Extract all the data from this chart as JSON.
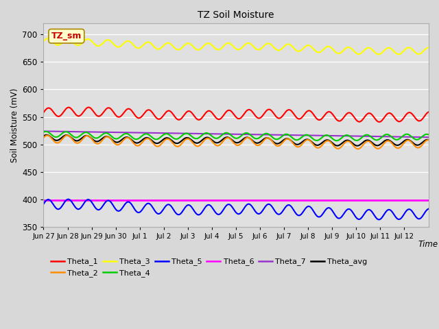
{
  "title": "TZ Soil Moisture",
  "xlabel": "Time",
  "ylabel": "Soil Moisture (mV)",
  "ylim": [
    350,
    720
  ],
  "yticks": [
    350,
    400,
    450,
    500,
    550,
    600,
    650,
    700
  ],
  "bg_color": "#d8d8d8",
  "plot_bg_color": "#e0e0e0",
  "legend_label": "TZ_sm",
  "series_order": [
    "Theta_6",
    "Theta_5",
    "Theta_7",
    "Theta_avg",
    "Theta_2",
    "Theta_4",
    "Theta_1",
    "Theta_3"
  ],
  "legend_order": [
    "Theta_1",
    "Theta_2",
    "Theta_3",
    "Theta_4",
    "Theta_5",
    "Theta_6",
    "Theta_7",
    "Theta_avg"
  ],
  "series": {
    "Theta_1": {
      "color": "#ff0000",
      "base": 558,
      "amplitude": 8,
      "trend": -8,
      "freq_per_day": 1.2,
      "phase": 0.0
    },
    "Theta_2": {
      "color": "#ff8c00",
      "base": 508,
      "amplitude": 7,
      "trend": -9,
      "freq_per_day": 1.2,
      "phase": 0.4
    },
    "Theta_3": {
      "color": "#ffff00",
      "base": 686,
      "amplitude": 6,
      "trend": -17,
      "freq_per_day": 1.2,
      "phase": 0.2
    },
    "Theta_4": {
      "color": "#00cc00",
      "base": 517,
      "amplitude": 5,
      "trend": -5,
      "freq_per_day": 1.2,
      "phase": 0.8
    },
    "Theta_5": {
      "color": "#0000ff",
      "base": 390,
      "amplitude": 9,
      "trend": -18,
      "freq_per_day": 1.2,
      "phase": 0.1
    },
    "Theta_6": {
      "color": "#ff00ff",
      "base": 398,
      "amplitude": 0,
      "trend": 0,
      "freq_per_day": 0,
      "phase": 0.0
    },
    "Theta_7": {
      "color": "#9932cc",
      "base": 524,
      "amplitude": 0,
      "trend": -11,
      "freq_per_day": 0,
      "phase": 0.0
    },
    "Theta_avg": {
      "color": "#000000",
      "base": 511,
      "amplitude": 5,
      "trend": -9,
      "freq_per_day": 1.2,
      "phase": 0.6
    }
  },
  "n_days": 16,
  "n_points": 500,
  "tick_positions": [
    0,
    1,
    2,
    3,
    4,
    5,
    6,
    7,
    8,
    9,
    10,
    11,
    12,
    13,
    14,
    15
  ],
  "tick_labels": [
    "Jun 27",
    "Jun 28",
    "Jun 29",
    "Jun 30",
    "Jul 1",
    "Jul 2",
    "Jul 3",
    "Jul 4",
    "Jul 5",
    "Jul 6",
    "Jul 7",
    "Jul 8",
    "Jul 9",
    "Jul 10",
    "Jul 11",
    "Jul 12"
  ]
}
